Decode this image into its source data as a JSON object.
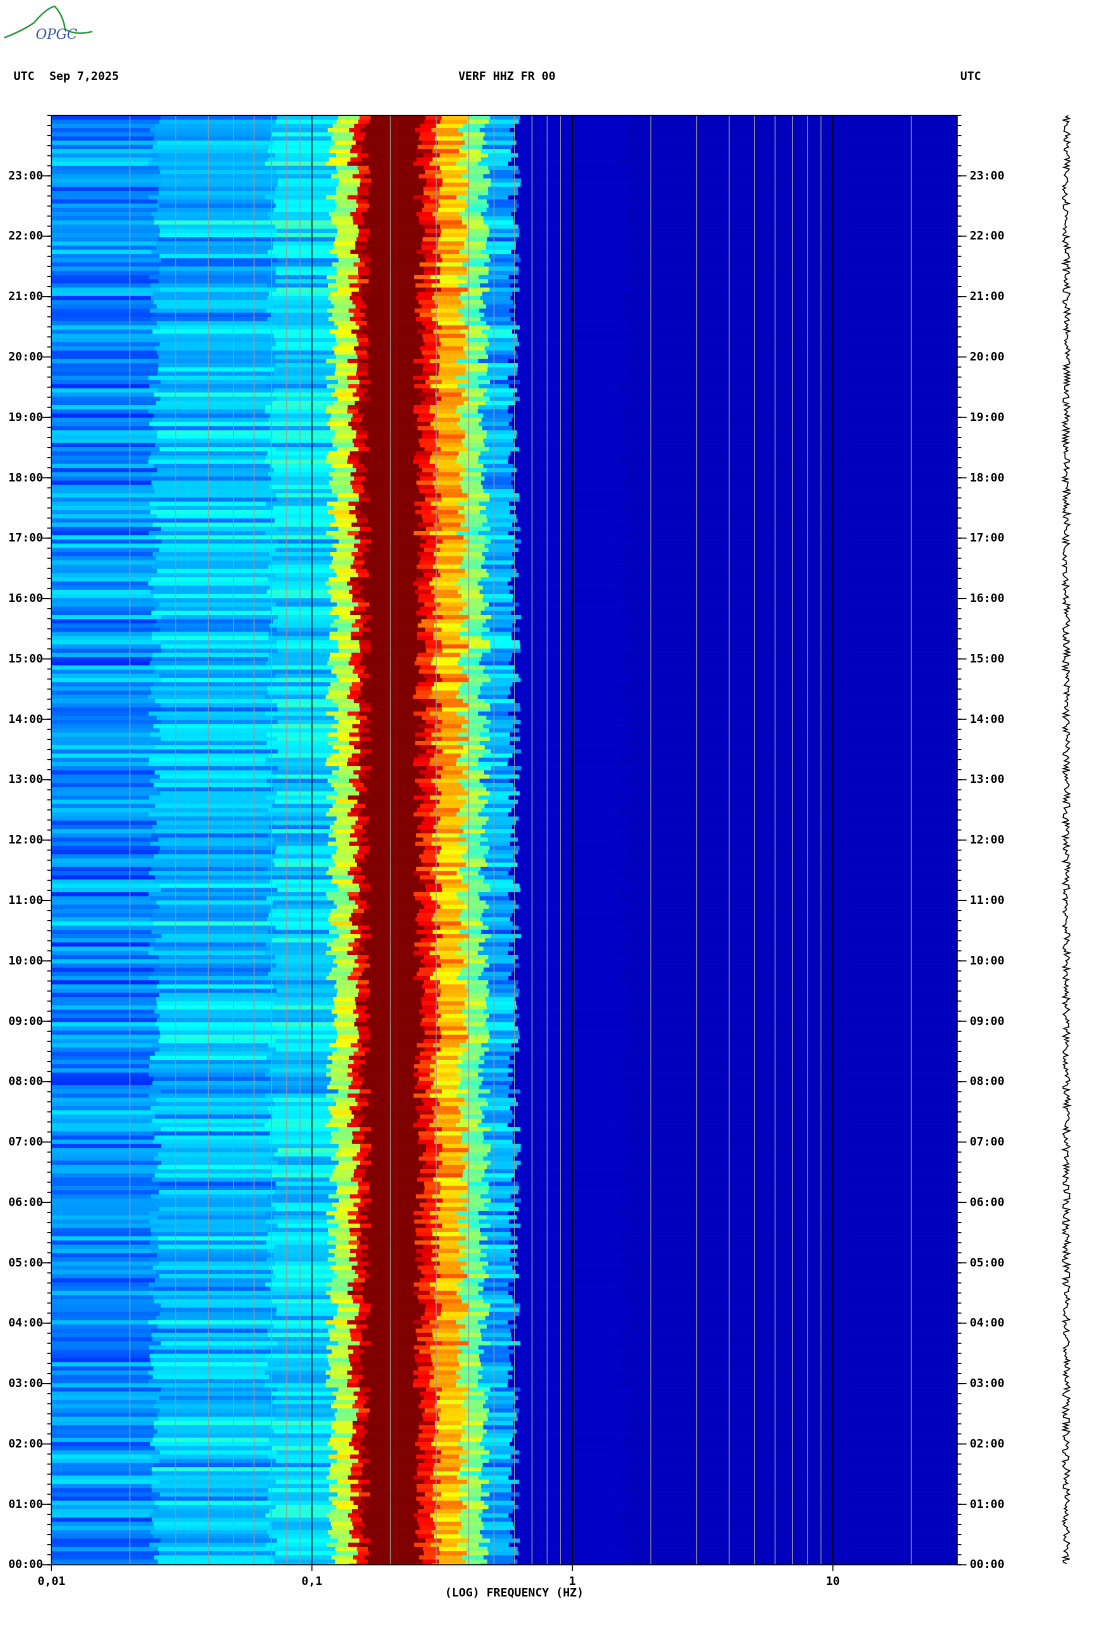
{
  "logo": "OPGC",
  "chart_data": {
    "type": "spectrogram",
    "title": "VERF HHZ FR 00",
    "date": "Sep 7,2025",
    "timezone_left": "UTC",
    "timezone_right": "UTC",
    "x_label": "(LOG) FREQUENCY (HZ)",
    "x_log": true,
    "xlim": [
      0.01,
      30
    ],
    "xticks": [
      {
        "value": 0.01,
        "label": "0,01"
      },
      {
        "value": 0.1,
        "label": "0,1"
      },
      1,
      10
    ],
    "ylim": [
      0,
      24
    ],
    "yticks": [
      {
        "value": 0,
        "label": "00:00"
      },
      {
        "value": 1,
        "label": "01:00"
      },
      {
        "value": 2,
        "label": "02:00"
      },
      {
        "value": 3,
        "label": "03:00"
      },
      {
        "value": 4,
        "label": "04:00"
      },
      {
        "value": 5,
        "label": "05:00"
      },
      {
        "value": 6,
        "label": "06:00"
      },
      {
        "value": 7,
        "label": "07:00"
      },
      {
        "value": 8,
        "label": "08:00"
      },
      {
        "value": 9,
        "label": "09:00"
      },
      {
        "value": 10,
        "label": "10:00"
      },
      {
        "value": 11,
        "label": "11:00"
      },
      {
        "value": 12,
        "label": "12:00"
      },
      {
        "value": 13,
        "label": "13:00"
      },
      {
        "value": 14,
        "label": "14:00"
      },
      {
        "value": 15,
        "label": "15:00"
      },
      {
        "value": 16,
        "label": "16:00"
      },
      {
        "value": 17,
        "label": "17:00"
      },
      {
        "value": 18,
        "label": "18:00"
      },
      {
        "value": 19,
        "label": "19:00"
      },
      {
        "value": 20,
        "label": "20:00"
      },
      {
        "value": 21,
        "label": "21:00"
      },
      {
        "value": 22,
        "label": "22:00"
      },
      {
        "value": 23,
        "label": "23:00"
      }
    ]
  }
}
